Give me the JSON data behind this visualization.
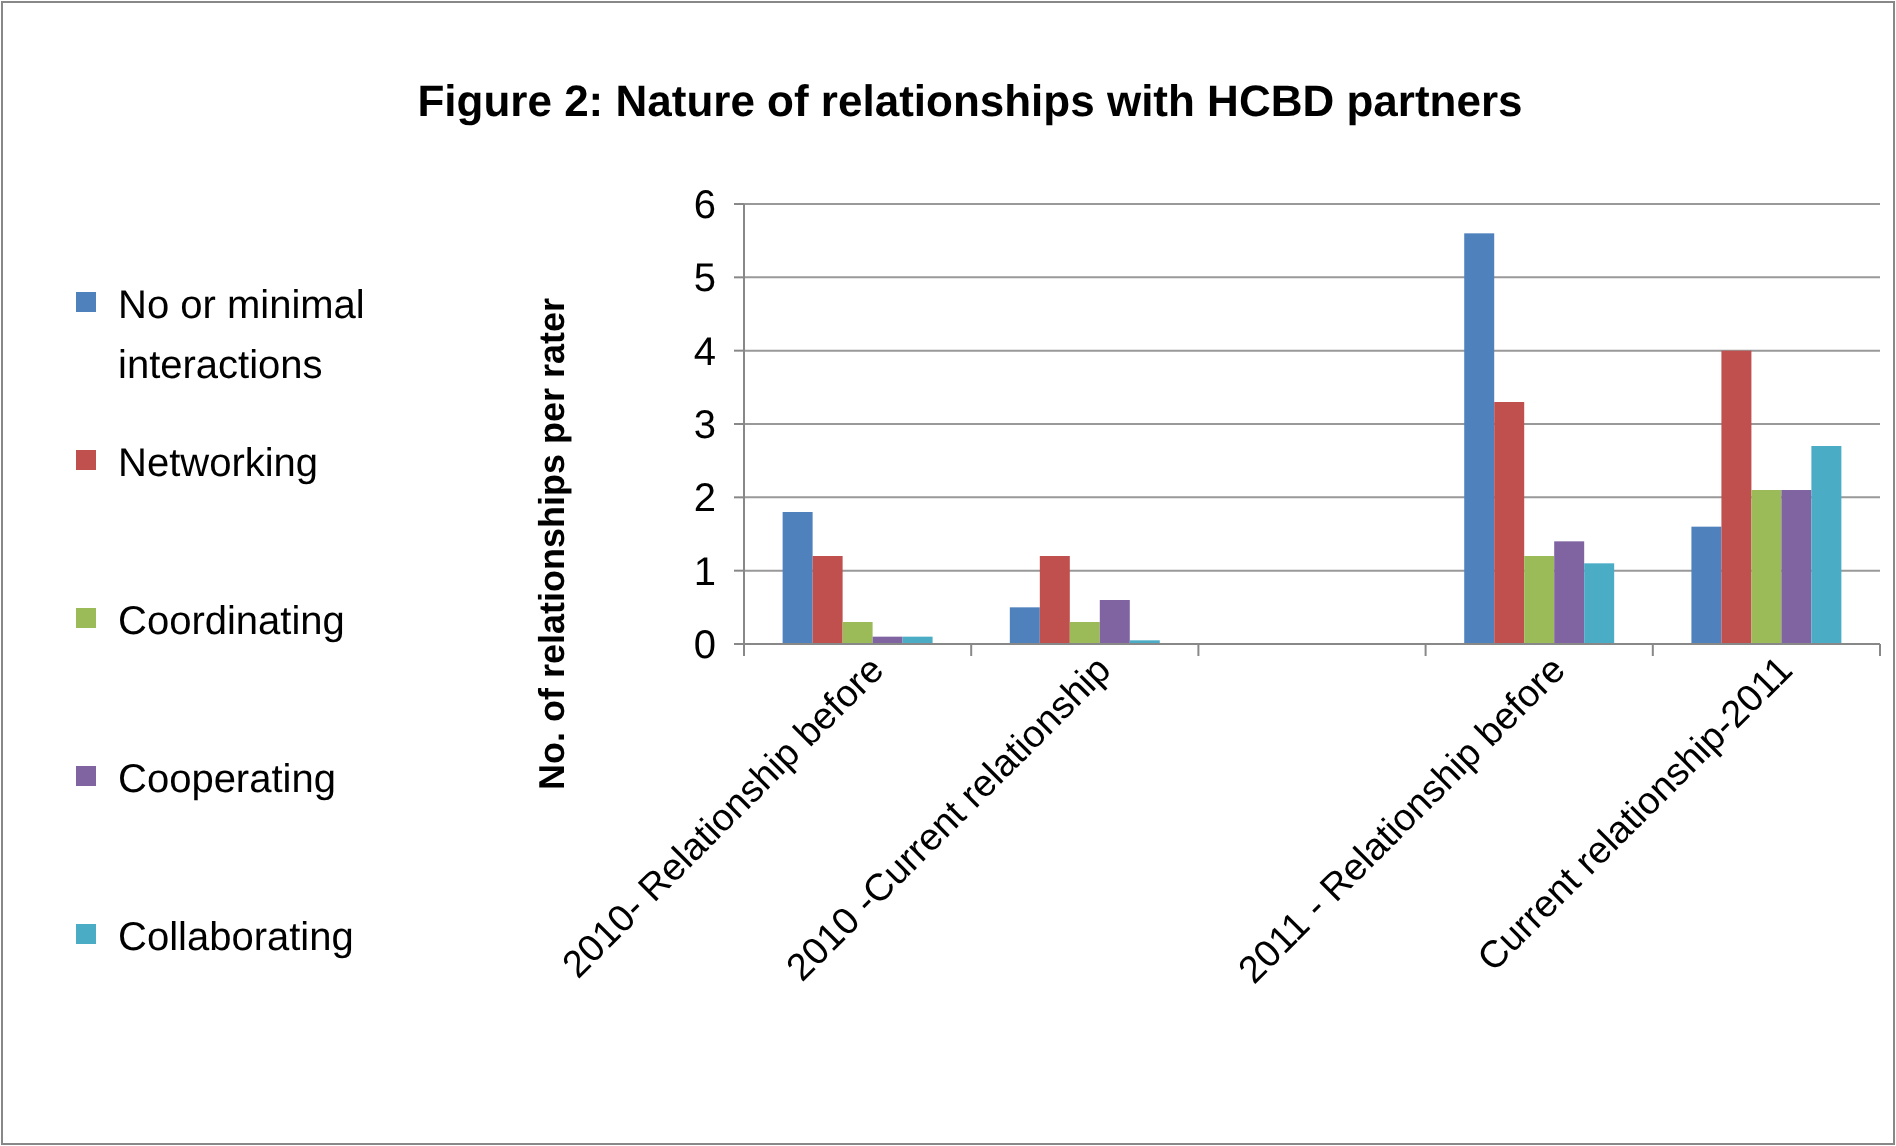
{
  "chart_data": {
    "type": "bar",
    "title": "Figure 2:  Nature of relationships with HCBD partners",
    "ylabel": "No. of relationships per rater",
    "categories": [
      "2010- Relationship before",
      "2010 -Current relationship",
      null,
      "2011 - Relationship before",
      "Current relationship-2011"
    ],
    "series": [
      {
        "name": "No or minimal interactions",
        "color": "#4f81bd",
        "values": [
          1.8,
          0.5,
          null,
          5.6,
          1.6
        ]
      },
      {
        "name": "Networking",
        "color": "#c0504d",
        "values": [
          1.2,
          1.2,
          null,
          3.3,
          4.0
        ]
      },
      {
        "name": "Coordinating",
        "color": "#9bbb59",
        "values": [
          0.3,
          0.3,
          null,
          1.2,
          2.1
        ]
      },
      {
        "name": "Cooperating",
        "color": "#8064a2",
        "values": [
          0.1,
          0.6,
          null,
          1.4,
          2.1
        ]
      },
      {
        "name": "Collaborating",
        "color": "#4bacc6",
        "values": [
          0.1,
          0.05,
          null,
          1.1,
          2.7
        ]
      }
    ],
    "ylim": [
      0,
      6
    ],
    "yticks": [
      0,
      1,
      2,
      3,
      4,
      5,
      6
    ],
    "grid": "y",
    "legend": "left"
  }
}
